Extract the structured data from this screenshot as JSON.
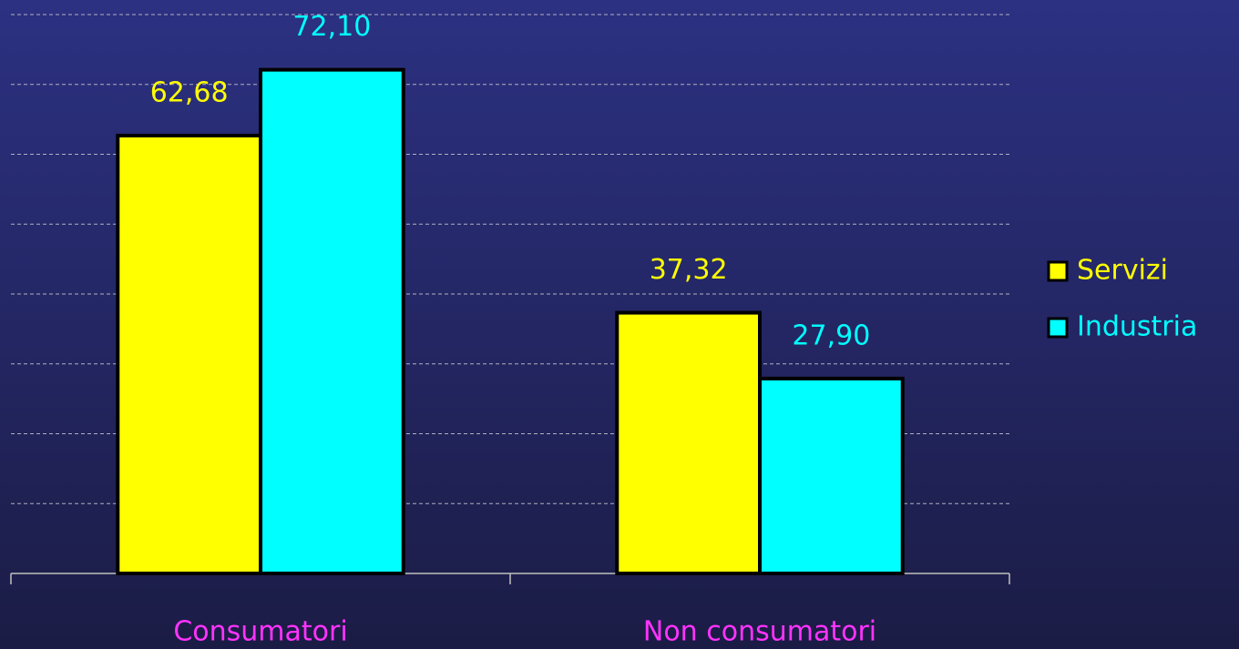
{
  "chart_data": {
    "type": "bar",
    "categories": [
      "Consumatori",
      "Non consumatori"
    ],
    "series": [
      {
        "name": "Servizi",
        "color": "#ffff00",
        "values": [
          62.68,
          37.32
        ],
        "value_labels": [
          "62,68",
          "37,32"
        ]
      },
      {
        "name": "Industria",
        "color": "#00ffff",
        "values": [
          72.1,
          27.9
        ],
        "value_labels": [
          "72,10",
          "27,90"
        ]
      }
    ],
    "ylim": [
      0,
      80
    ],
    "yticks": [
      0,
      10,
      20,
      30,
      40,
      50,
      60,
      70,
      80
    ],
    "grid": true,
    "legend": "right",
    "category_label_color": "#ff33ff"
  }
}
